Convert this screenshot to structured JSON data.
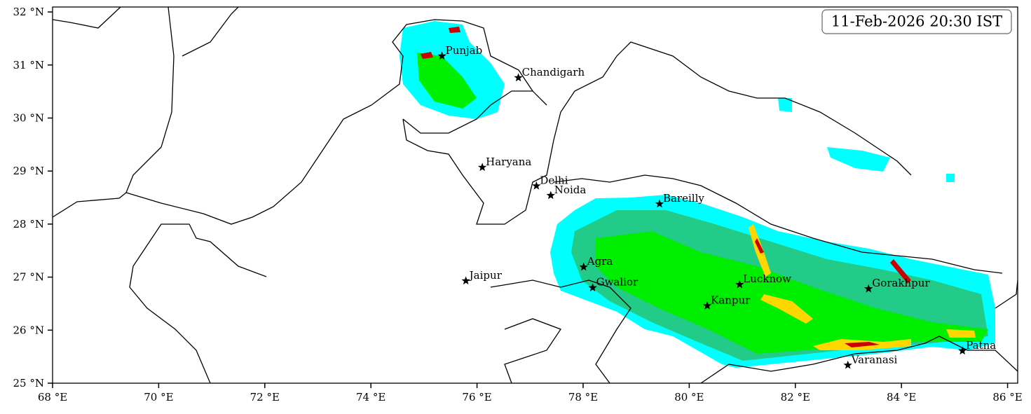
{
  "map": {
    "timestamp": "11-Feb-2026 20:30 IST",
    "xlim": [
      68,
      86.2
    ],
    "ylim": [
      25,
      32.1
    ],
    "xticks": [
      {
        "value": 68,
        "label": "68 °E"
      },
      {
        "value": 70,
        "label": "70 °E"
      },
      {
        "value": 72,
        "label": "72 °E"
      },
      {
        "value": 74,
        "label": "74 °E"
      },
      {
        "value": 76,
        "label": "76 °E"
      },
      {
        "value": 78,
        "label": "78 °E"
      },
      {
        "value": 80,
        "label": "80 °E"
      },
      {
        "value": 82,
        "label": "82 °E"
      },
      {
        "value": 84,
        "label": "84 °E"
      },
      {
        "value": 86,
        "label": "86 °E"
      }
    ],
    "yticks": [
      {
        "value": 25,
        "label": "25 °N"
      },
      {
        "value": 26,
        "label": "26 °N"
      },
      {
        "value": 27,
        "label": "27 °N"
      },
      {
        "value": 28,
        "label": "28 °N"
      },
      {
        "value": 29,
        "label": "29 °N"
      },
      {
        "value": 30,
        "label": "30 °N"
      },
      {
        "value": 31,
        "label": "31 °N"
      },
      {
        "value": 32,
        "label": "32 °N"
      }
    ],
    "cities": [
      {
        "name": "Punjab",
        "lon": 75.34,
        "lat": 31.17
      },
      {
        "name": "Chandigarh",
        "lon": 76.78,
        "lat": 30.76
      },
      {
        "name": "Haryana",
        "lon": 76.1,
        "lat": 29.07
      },
      {
        "name": "Delhi",
        "lon": 77.12,
        "lat": 28.72
      },
      {
        "name": "Noida",
        "lon": 77.39,
        "lat": 28.54
      },
      {
        "name": "Bareilly",
        "lon": 79.44,
        "lat": 28.38
      },
      {
        "name": "Agra",
        "lon": 78.01,
        "lat": 27.19
      },
      {
        "name": "Jaipur",
        "lon": 75.79,
        "lat": 26.93
      },
      {
        "name": "Gwalior",
        "lon": 78.18,
        "lat": 26.8
      },
      {
        "name": "Lucknow",
        "lon": 80.95,
        "lat": 26.86
      },
      {
        "name": "Kanpur",
        "lon": 80.34,
        "lat": 26.46
      },
      {
        "name": "Gorakhpur",
        "lon": 83.38,
        "lat": 26.78
      },
      {
        "name": "Patna",
        "lon": 85.15,
        "lat": 25.61
      },
      {
        "name": "Varanasi",
        "lon": 82.99,
        "lat": 25.34
      }
    ]
  }
}
